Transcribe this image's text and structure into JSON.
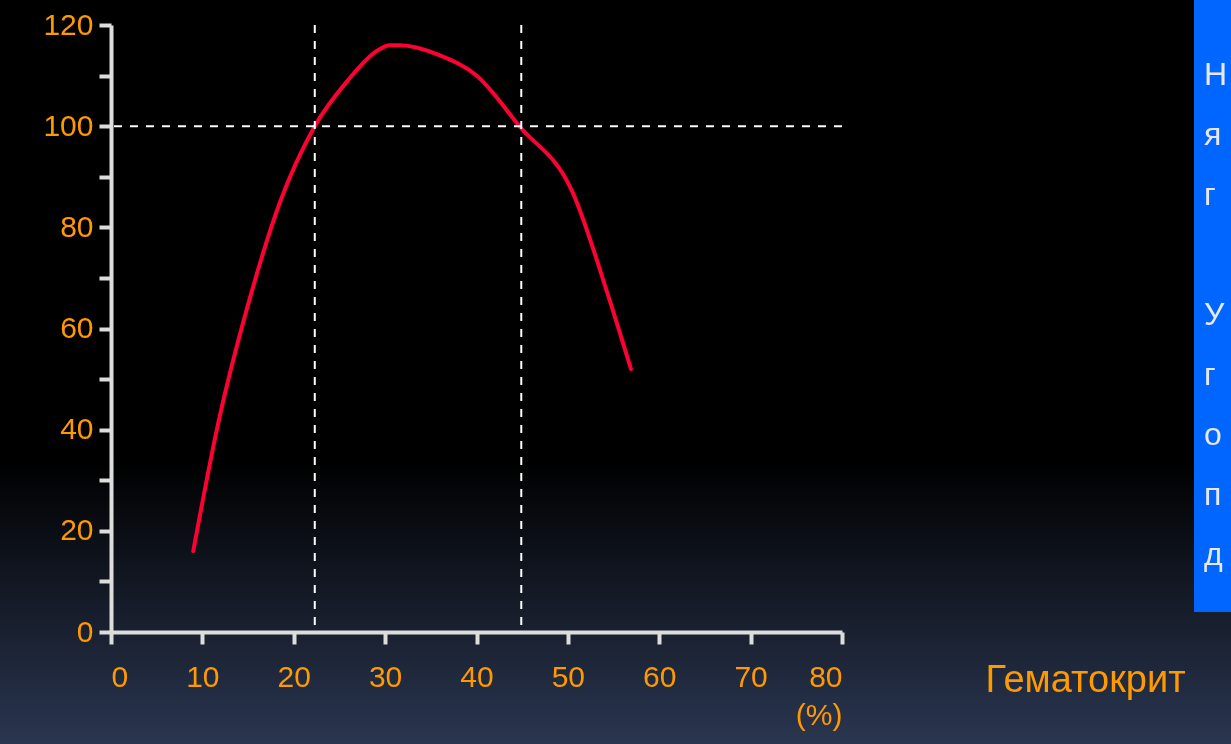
{
  "chart_data": {
    "type": "line",
    "xlabel": "Гематокрит",
    "series": [
      {
        "color": "#ff0033",
        "x": [
          9,
          11.7,
          15.2,
          18.5,
          22.3,
          25.9,
          29.2,
          30.5,
          31.6,
          36,
          40,
          44.7,
          50.5,
          54.5,
          56.9
        ],
        "values": [
          16,
          41,
          66,
          85,
          100,
          109,
          115,
          116,
          116,
          114,
          110,
          100,
          87,
          66,
          52
        ]
      }
    ],
    "xlim": [
      0,
      80
    ],
    "ylim": [
      0,
      120
    ],
    "xticks": [
      0,
      10,
      20,
      30,
      40,
      50,
      60,
      70,
      {
        "value": 80,
        "label": "80\n(%)"
      }
    ],
    "yticks": [
      0,
      {
        "value": 10,
        "label": null
      },
      20,
      {
        "value": 30,
        "label": null
      },
      40,
      {
        "value": 50,
        "label": null
      },
      60,
      {
        "value": 70,
        "label": null
      },
      80,
      {
        "value": 90,
        "label": null
      },
      100,
      {
        "value": 110,
        "label": null
      },
      120
    ],
    "ref_lines": [
      {
        "axis": "x",
        "value": 22.3,
        "color": "#ffffff",
        "line_style": "dashed"
      },
      {
        "axis": "x",
        "value": 44.9,
        "color": "#ffffff",
        "line_style": "dashed"
      },
      {
        "axis": "y",
        "value": 100,
        "color": "#ffffff",
        "line_style": "dashed"
      }
    ],
    "marker": "none",
    "line_style": "solid",
    "annotations": [
      "Н\nя\nг\n\nУ\nг\nо\nп\nд"
    ]
  }
}
